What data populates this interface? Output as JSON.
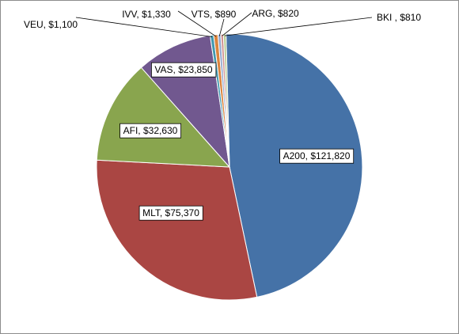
{
  "chart_data": {
    "type": "pie",
    "title": "",
    "start_angle_deg": -1.5,
    "direction": "clockwise",
    "slices": [
      {
        "label": "A200, $121,820",
        "value": 121820,
        "color": "#4572a7"
      },
      {
        "label": "MLT, $75,370",
        "value": 75370,
        "color": "#aa4643"
      },
      {
        "label": "AFI, $32,630",
        "value": 32630,
        "color": "#89a54e"
      },
      {
        "label": "VAS, $23,850",
        "value": 23850,
        "color": "#71588f"
      },
      {
        "label": "VEU, $1,100",
        "value": 1100,
        "color": "#4198af"
      },
      {
        "label": "IVV, $1,330",
        "value": 1330,
        "color": "#db843d"
      },
      {
        "label": "VTS, $890",
        "value": 890,
        "color": "#93a9cf"
      },
      {
        "label": "ARG, $820",
        "value": 820,
        "color": "#d19392"
      },
      {
        "label": "BKI , $810",
        "value": 810,
        "color": "#b9cd96"
      }
    ]
  }
}
